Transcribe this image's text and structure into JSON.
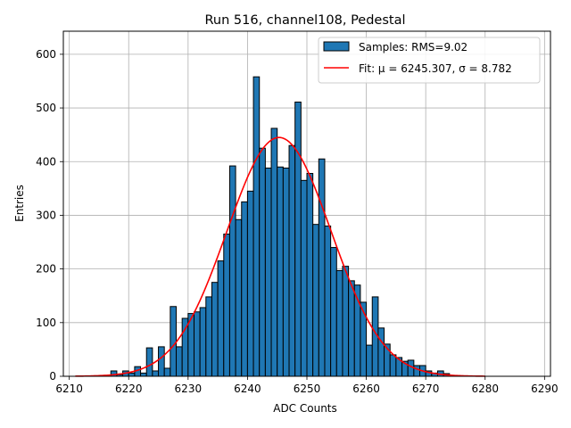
{
  "chart_data": {
    "type": "bar",
    "title": "Run 516, channel108, Pedestal",
    "xlabel": "ADC Counts",
    "ylabel": "Entries",
    "xlim": [
      6209,
      6291
    ],
    "ylim": [
      0,
      643
    ],
    "xticks": [
      6210,
      6220,
      6230,
      6240,
      6250,
      6260,
      6270,
      6280,
      6290
    ],
    "yticks": [
      0,
      100,
      200,
      300,
      400,
      500,
      600
    ],
    "grid": true,
    "legend_position": "top-right",
    "bin_width": 1,
    "bins": [
      [
        6217,
        10
      ],
      [
        6218,
        3
      ],
      [
        6219,
        10
      ],
      [
        6220,
        6
      ],
      [
        6221,
        18
      ],
      [
        6222,
        6
      ],
      [
        6223,
        53
      ],
      [
        6224,
        10
      ],
      [
        6225,
        55
      ],
      [
        6226,
        15
      ],
      [
        6227,
        130
      ],
      [
        6228,
        55
      ],
      [
        6229,
        108
      ],
      [
        6230,
        117
      ],
      [
        6231,
        120
      ],
      [
        6232,
        128
      ],
      [
        6233,
        148
      ],
      [
        6234,
        175
      ],
      [
        6235,
        215
      ],
      [
        6236,
        265
      ],
      [
        6237,
        392
      ],
      [
        6238,
        292
      ],
      [
        6239,
        325
      ],
      [
        6240,
        345
      ],
      [
        6241,
        558
      ],
      [
        6242,
        425
      ],
      [
        6243,
        388
      ],
      [
        6244,
        462
      ],
      [
        6245,
        390
      ],
      [
        6246,
        388
      ],
      [
        6247,
        430
      ],
      [
        6248,
        511
      ],
      [
        6249,
        365
      ],
      [
        6250,
        378
      ],
      [
        6251,
        283
      ],
      [
        6252,
        405
      ],
      [
        6253,
        280
      ],
      [
        6254,
        240
      ],
      [
        6255,
        197
      ],
      [
        6256,
        205
      ],
      [
        6257,
        178
      ],
      [
        6258,
        170
      ],
      [
        6259,
        138
      ],
      [
        6260,
        58
      ],
      [
        6261,
        148
      ],
      [
        6262,
        90
      ],
      [
        6263,
        60
      ],
      [
        6264,
        40
      ],
      [
        6265,
        35
      ],
      [
        6266,
        28
      ],
      [
        6267,
        30
      ],
      [
        6268,
        20
      ],
      [
        6269,
        20
      ],
      [
        6270,
        10
      ],
      [
        6271,
        6
      ],
      [
        6272,
        10
      ],
      [
        6273,
        5
      ]
    ],
    "series": [
      {
        "name": "Samples: RMS=9.02",
        "kind": "histogram",
        "color": "#1f77b4",
        "edgecolor": "#000000"
      },
      {
        "name": "Fit: μ = 6245.307, σ = 8.782",
        "kind": "gaussian",
        "color": "#ff0000",
        "mu": 6245.307,
        "sigma": 8.782,
        "amplitude": 445,
        "range": [
          6211,
          6280
        ]
      }
    ]
  }
}
